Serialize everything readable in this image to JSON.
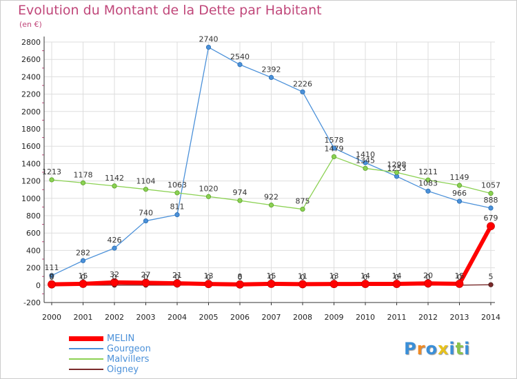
{
  "title": "Evolution du Montant de la Dette par Habitant",
  "subtitle": "(en €)",
  "logo": {
    "text": "Proxiti",
    "letter_colors": [
      "#3a8fd8",
      "#f08a24",
      "#3a8fd8",
      "#e8c21c",
      "#3a8fd8",
      "#8bc34a",
      "#3a8fd8"
    ]
  },
  "colors": {
    "grid": "#dddddd",
    "axis": "#333333",
    "ticks_marker": "#c0477a"
  },
  "chart_data": {
    "type": "line",
    "x": [
      "2000",
      "2001",
      "2002",
      "2003",
      "2004",
      "2005",
      "2006",
      "2007",
      "2008",
      "2009",
      "2010",
      "2011",
      "2012",
      "2013",
      "2014"
    ],
    "ylim": [
      -200,
      2800
    ],
    "yticks": [
      "-200",
      "0",
      "200",
      "400",
      "600",
      "800",
      "1000",
      "1200",
      "1400",
      "1600",
      "1800",
      "2000",
      "2200",
      "2400",
      "2600",
      "2800"
    ],
    "grid": true,
    "legend_position": "bottom-left",
    "series": [
      {
        "name": "MELIN",
        "color": "#ff0000",
        "values": [
          9,
          15,
          32,
          27,
          21,
          13,
          8,
          15,
          11,
          13,
          14,
          14,
          20,
          15,
          679
        ],
        "labels": [
          "9",
          "15",
          "32",
          "27",
          "21",
          "13",
          "8",
          "15",
          "11",
          "13",
          "14",
          "14",
          "20",
          "15",
          "679"
        ]
      },
      {
        "name": "Gourgeon",
        "color": "#4a90d9",
        "values": [
          111,
          282,
          426,
          740,
          811,
          2740,
          2540,
          2392,
          2226,
          1578,
          1410,
          1253,
          1083,
          966,
          888
        ],
        "labels": [
          "111",
          "282",
          "426",
          "740",
          "811",
          "2740",
          "2540",
          "2392",
          "2226",
          "1578",
          "1410",
          "1253",
          "1083",
          "966",
          "888"
        ]
      },
      {
        "name": "Malvillers",
        "color": "#8bd152",
        "values": [
          1213,
          1178,
          1142,
          1104,
          1063,
          1020,
          974,
          922,
          875,
          1479,
          1345,
          1298,
          1211,
          1149,
          1057
        ],
        "labels": [
          "1213",
          "1178",
          "1142",
          "1104",
          "1063",
          "1020",
          "974",
          "922",
          "875",
          "1479",
          "1345",
          "1298",
          "1211",
          "1149",
          "1057"
        ]
      },
      {
        "name": "Oigney",
        "color": "#7a2a2a",
        "values": [
          0,
          0,
          0,
          0,
          0,
          0,
          0,
          0,
          0,
          0,
          0,
          0,
          0,
          0,
          5
        ],
        "labels": [
          "0",
          "0",
          "0",
          "0",
          "0",
          "0",
          "0",
          "0",
          "0",
          "0",
          "0",
          "0",
          "0",
          "0",
          "5"
        ]
      }
    ]
  }
}
